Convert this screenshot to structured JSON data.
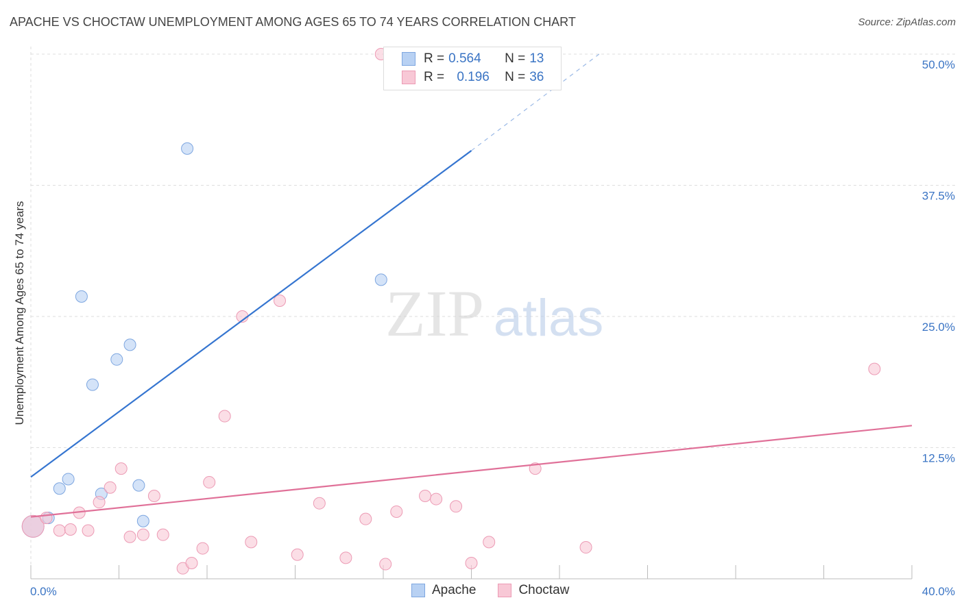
{
  "title": "APACHE VS CHOCTAW UNEMPLOYMENT AMONG AGES 65 TO 74 YEARS CORRELATION CHART",
  "source": "Source: ZipAtlas.com",
  "watermark": {
    "zip": "ZIP",
    "atlas": "atlas"
  },
  "legend": {
    "apache": {
      "r_label": "R =",
      "r_value": "0.564",
      "n_label": "N =",
      "n_value": "13"
    },
    "choctaw": {
      "r_label": "R =",
      "r_value": "0.196",
      "n_label": "N =",
      "n_value": "36"
    }
  },
  "bottom_legend": {
    "apache": "Apache",
    "choctaw": "Choctaw"
  },
  "colors": {
    "apache_fill": "#b8d1f3",
    "apache_stroke": "#7da6e0",
    "apache_line": "#3575d0",
    "choctaw_fill": "#f8c8d6",
    "choctaw_stroke": "#ec9ab4",
    "choctaw_line": "#e07098",
    "tick_text": "#3a74c4",
    "grid": "#dddddd"
  },
  "chart_data": {
    "type": "scatter",
    "title": "APACHE VS CHOCTAW UNEMPLOYMENT AMONG AGES 65 TO 74 YEARS CORRELATION CHART",
    "xlabel": "",
    "ylabel": "Unemployment Among Ages 65 to 74 years",
    "xlim": [
      0,
      40
    ],
    "ylim": [
      0,
      50
    ],
    "x_tick_labels": [
      "0.0%",
      "40.0%"
    ],
    "y_ticks": [
      12.5,
      25.0,
      37.5,
      50.0
    ],
    "y_tick_labels": [
      "12.5%",
      "25.0%",
      "37.5%",
      "50.0%"
    ],
    "series": [
      {
        "name": "Apache",
        "r": 0.564,
        "n": 13,
        "points": [
          [
            0.1,
            5.0
          ],
          [
            0.8,
            5.8
          ],
          [
            1.3,
            8.6
          ],
          [
            1.7,
            9.5
          ],
          [
            2.3,
            26.9
          ],
          [
            2.8,
            18.5
          ],
          [
            3.2,
            8.1
          ],
          [
            3.9,
            20.9
          ],
          [
            4.5,
            22.3
          ],
          [
            4.9,
            8.9
          ],
          [
            5.1,
            5.5
          ],
          [
            7.1,
            41.0
          ],
          [
            15.9,
            28.5
          ]
        ],
        "trend": {
          "x0": 0,
          "y0": 9.7,
          "x1": 20.0,
          "y1": 40.8,
          "dash_x1": 25.8,
          "dash_y1": 50.0
        }
      },
      {
        "name": "Choctaw",
        "r": 0.196,
        "n": 36,
        "points": [
          [
            0.1,
            5.0
          ],
          [
            0.7,
            5.8
          ],
          [
            1.3,
            4.6
          ],
          [
            1.8,
            4.7
          ],
          [
            2.2,
            6.3
          ],
          [
            2.6,
            4.6
          ],
          [
            3.1,
            7.3
          ],
          [
            3.6,
            8.7
          ],
          [
            4.1,
            10.5
          ],
          [
            4.5,
            4.0
          ],
          [
            5.1,
            4.2
          ],
          [
            5.6,
            7.9
          ],
          [
            6.0,
            4.2
          ],
          [
            6.9,
            1.0
          ],
          [
            7.3,
            1.5
          ],
          [
            7.8,
            2.9
          ],
          [
            8.1,
            9.2
          ],
          [
            8.8,
            15.5
          ],
          [
            9.6,
            25.0
          ],
          [
            10.0,
            3.5
          ],
          [
            11.3,
            26.5
          ],
          [
            12.1,
            2.3
          ],
          [
            13.1,
            7.2
          ],
          [
            14.3,
            2.0
          ],
          [
            15.2,
            5.7
          ],
          [
            15.9,
            50.0
          ],
          [
            16.1,
            1.4
          ],
          [
            16.6,
            6.4
          ],
          [
            17.9,
            7.9
          ],
          [
            18.4,
            7.6
          ],
          [
            19.3,
            6.9
          ],
          [
            20.0,
            1.5
          ],
          [
            20.8,
            3.5
          ],
          [
            22.9,
            10.5
          ],
          [
            25.2,
            3.0
          ],
          [
            38.3,
            20.0
          ]
        ],
        "trend": {
          "x0": 0,
          "y0": 5.9,
          "x1": 40.0,
          "y1": 14.6
        }
      }
    ]
  }
}
